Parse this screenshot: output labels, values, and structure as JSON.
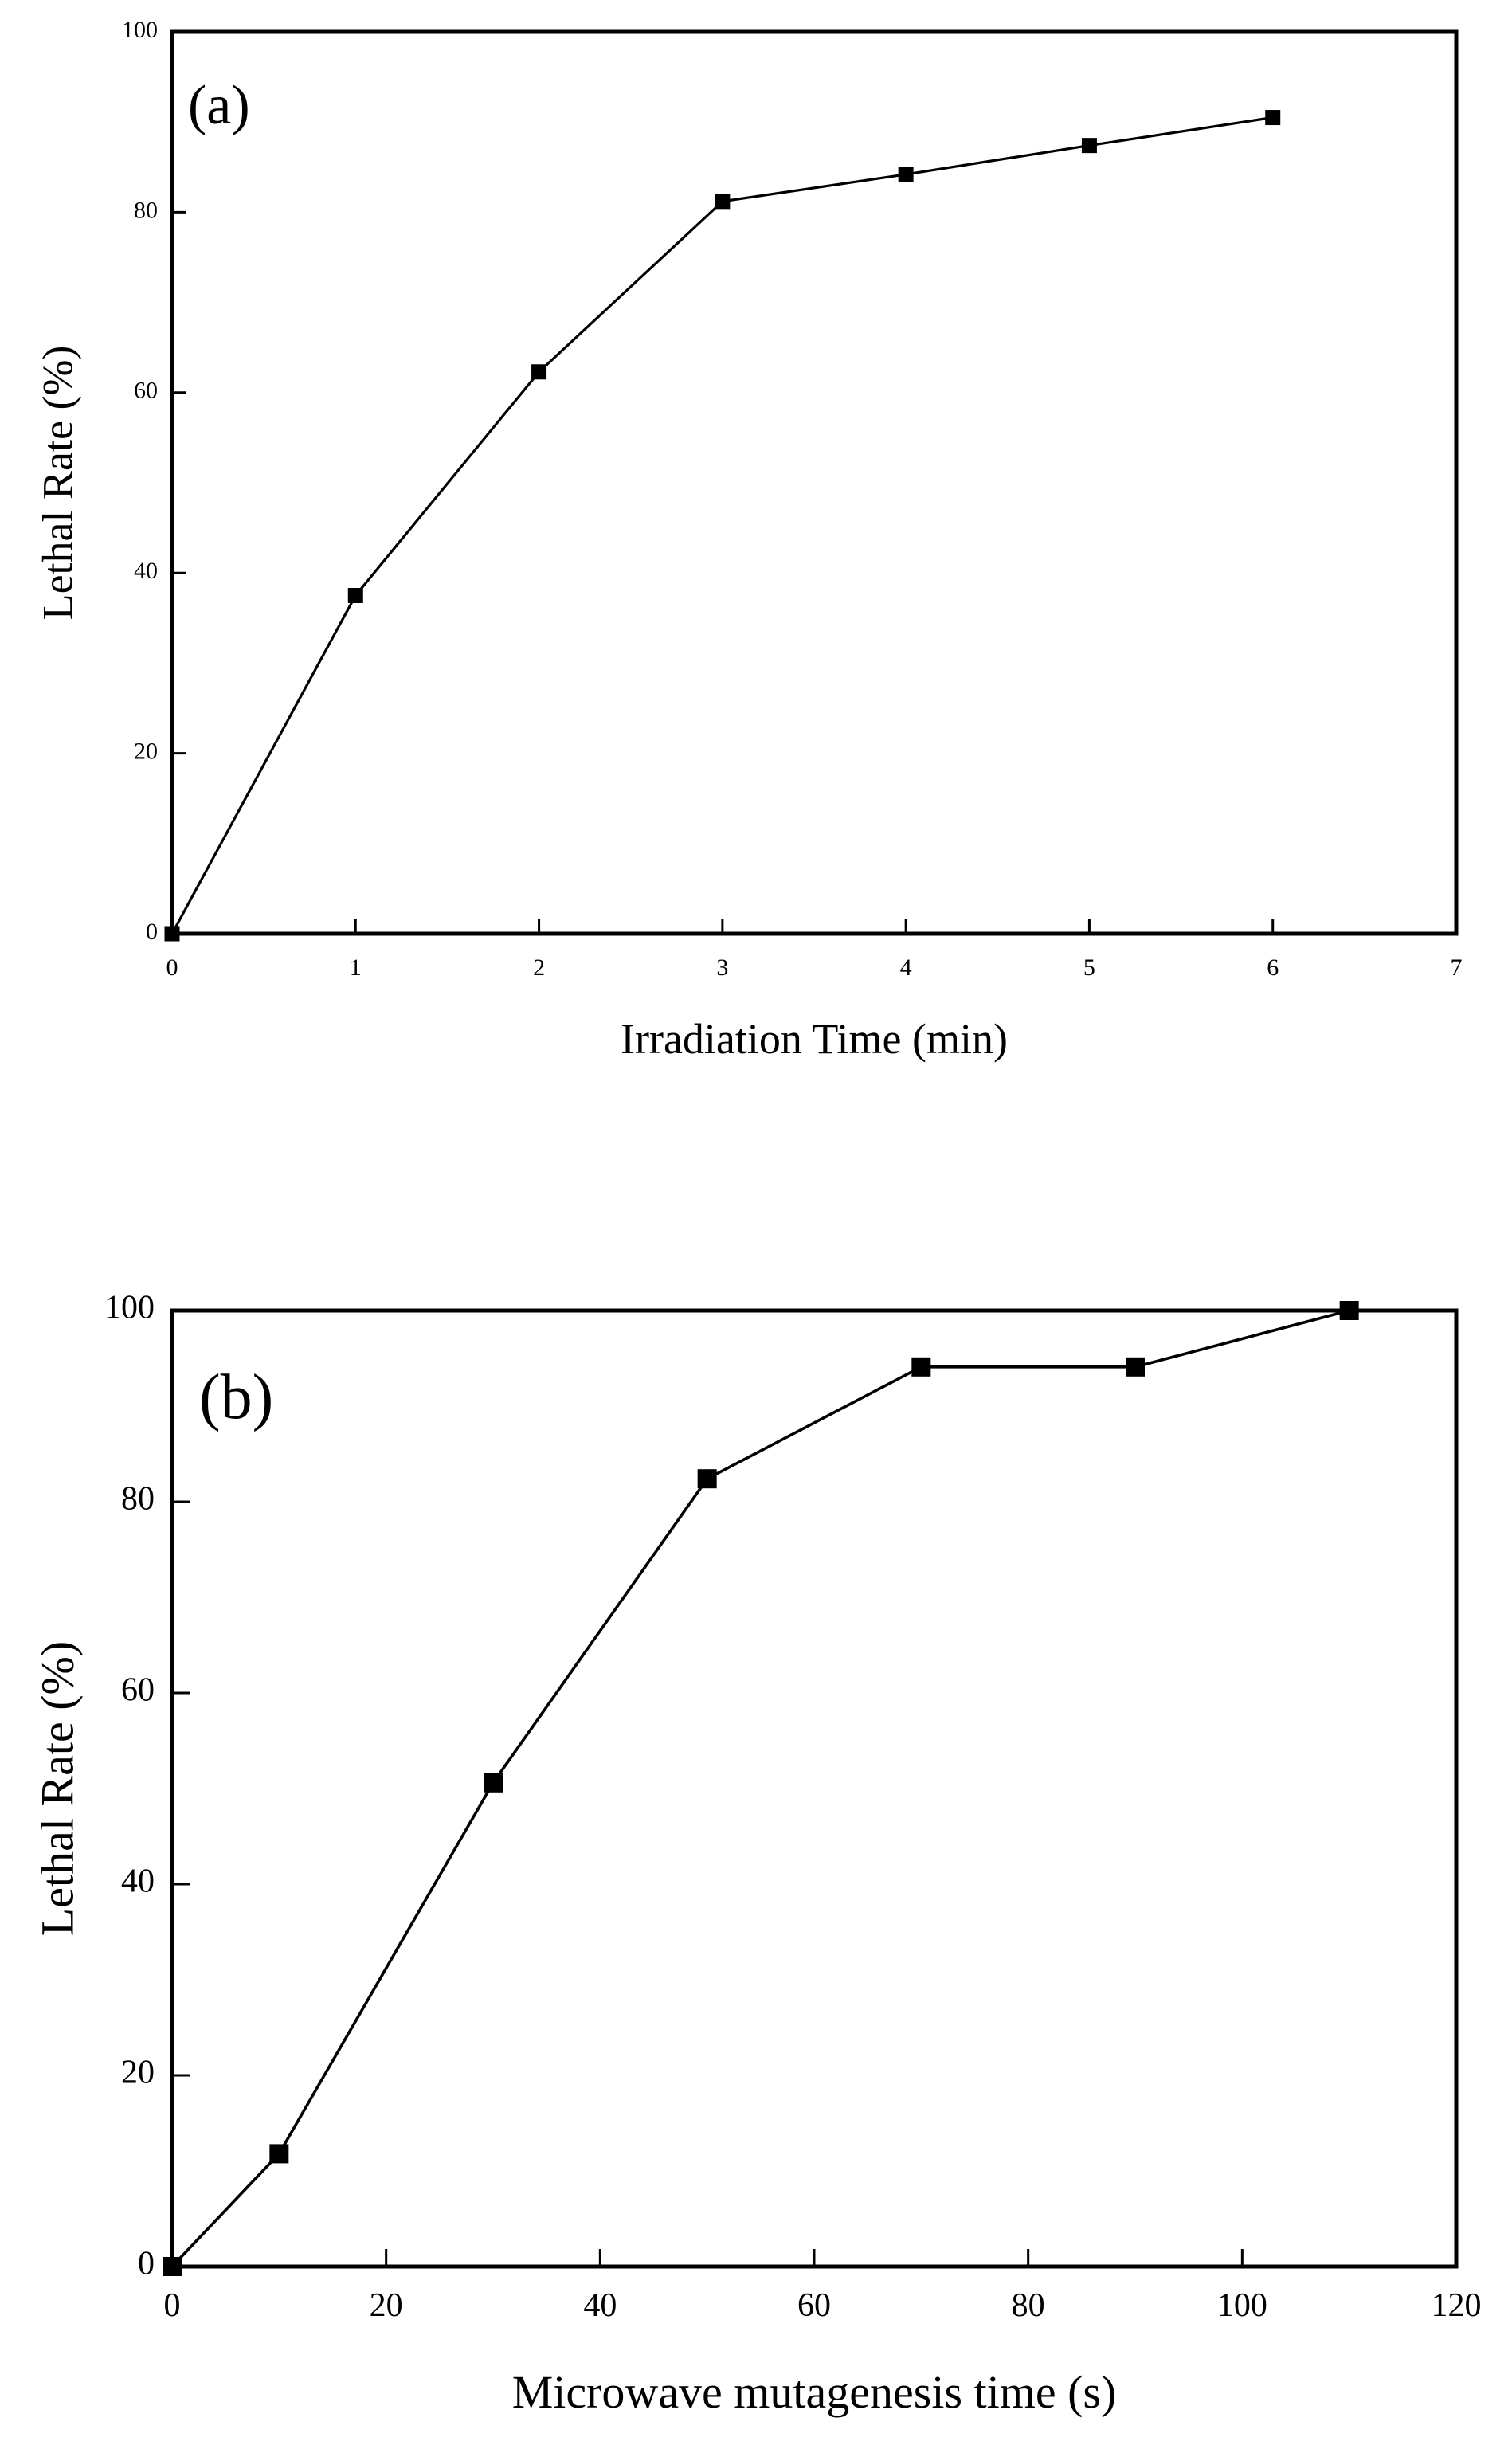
{
  "colors": {
    "line": "#000000",
    "marker": "#000000",
    "frame": "#000000",
    "background": "#ffffff"
  },
  "chart_data": [
    {
      "panel": "(a)",
      "type": "line",
      "marker": "square",
      "xlabel": "Irradiation Time (min)",
      "ylabel": "Lethal Rate (%)",
      "xlim": [
        0,
        7
      ],
      "ylim": [
        0,
        100
      ],
      "xticks": [
        0,
        1,
        2,
        3,
        4,
        5,
        6,
        7
      ],
      "yticks": [
        0,
        20,
        40,
        60,
        80,
        100
      ],
      "grid": false,
      "series": [
        {
          "name": "Lethal Rate",
          "x": [
            0,
            1,
            2,
            3,
            4,
            5,
            6
          ],
          "y": [
            0,
            37.5,
            62.3,
            81.2,
            84.2,
            87.4,
            90.5
          ]
        }
      ]
    },
    {
      "panel": "(b)",
      "type": "line",
      "marker": "square",
      "xlabel": "Microwave mutagenesis time (s)",
      "ylabel": "Lethal Rate (%)",
      "xlim": [
        0,
        120
      ],
      "ylim": [
        0,
        100
      ],
      "xticks": [
        0,
        20,
        40,
        60,
        80,
        100,
        120
      ],
      "yticks": [
        0,
        20,
        40,
        60,
        80,
        100
      ],
      "grid": false,
      "series": [
        {
          "name": "Lethal Rate",
          "x": [
            0,
            10,
            30,
            50,
            70,
            90,
            110
          ],
          "y": [
            0,
            11.8,
            50.6,
            82.4,
            94.1,
            94.1,
            100
          ]
        }
      ]
    }
  ]
}
